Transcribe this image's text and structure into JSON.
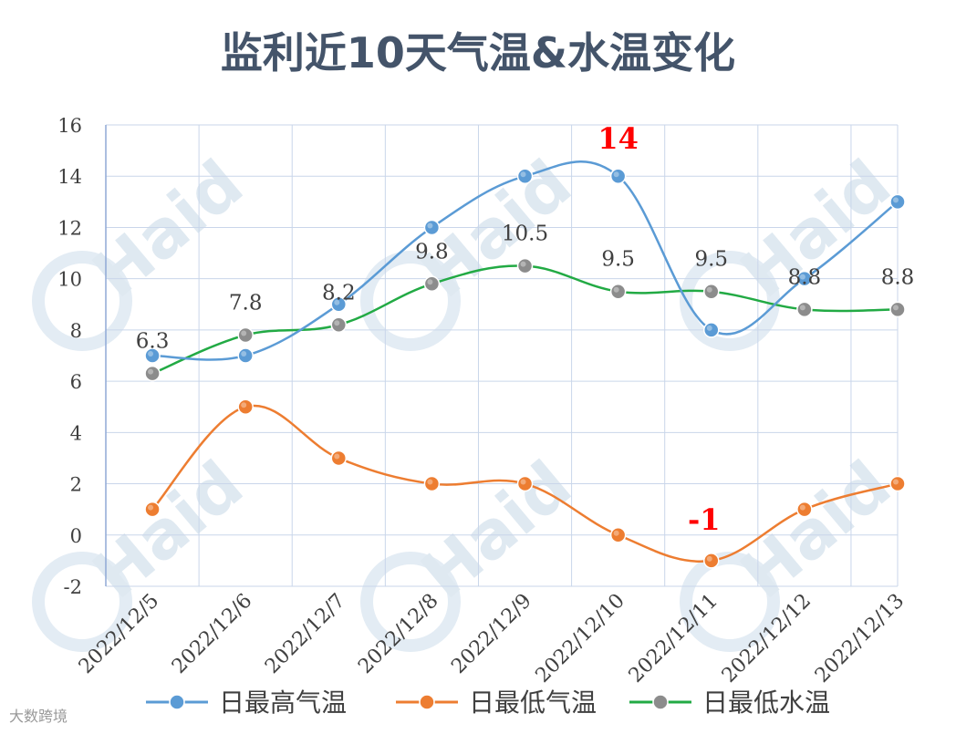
{
  "chart_data": {
    "type": "line",
    "title": "监利近10天气温&水温变化",
    "categories": [
      "2022/12/5",
      "2022/12/6",
      "2022/12/7",
      "2022/12/8",
      "2022/12/9",
      "2022/12/10",
      "2022/12/11",
      "2022/12/12",
      "2022/12/13"
    ],
    "ylim": [
      -2,
      16
    ],
    "yticks": [
      "16",
      "14",
      "12",
      "10",
      "8",
      "6",
      "4",
      "2",
      "0",
      "-2"
    ],
    "grid": true,
    "legend_position": "bottom",
    "series": [
      {
        "name": "日最高气温",
        "color": "#5b9bd5",
        "values": [
          7,
          7,
          9,
          12,
          14,
          14,
          8,
          10,
          13
        ]
      },
      {
        "name": "日最低气温",
        "color": "#ed7d31",
        "values": [
          1,
          5,
          3,
          2,
          2,
          0,
          -1,
          1,
          2
        ]
      },
      {
        "name": "日最低水温",
        "color": "#22aa44",
        "marker_color": "#8c8c8c",
        "values": [
          6.3,
          7.8,
          8.2,
          9.8,
          10.5,
          9.5,
          9.5,
          8.8,
          8.8
        ]
      }
    ],
    "data_labels": [
      "6.3",
      "7.8",
      "8.2",
      "9.8",
      "10.5",
      "9.5",
      "9.5",
      "8.8",
      "8.8"
    ],
    "annotations": [
      {
        "text": "14",
        "color": "#ff0000",
        "x": "2022/12/10",
        "y": 14
      },
      {
        "text": "-1",
        "color": "#ff0000",
        "x": "2022/12/11",
        "y": -1
      }
    ]
  },
  "watermark": {
    "brand": "Haid",
    "logo_text": "大数跨境"
  }
}
